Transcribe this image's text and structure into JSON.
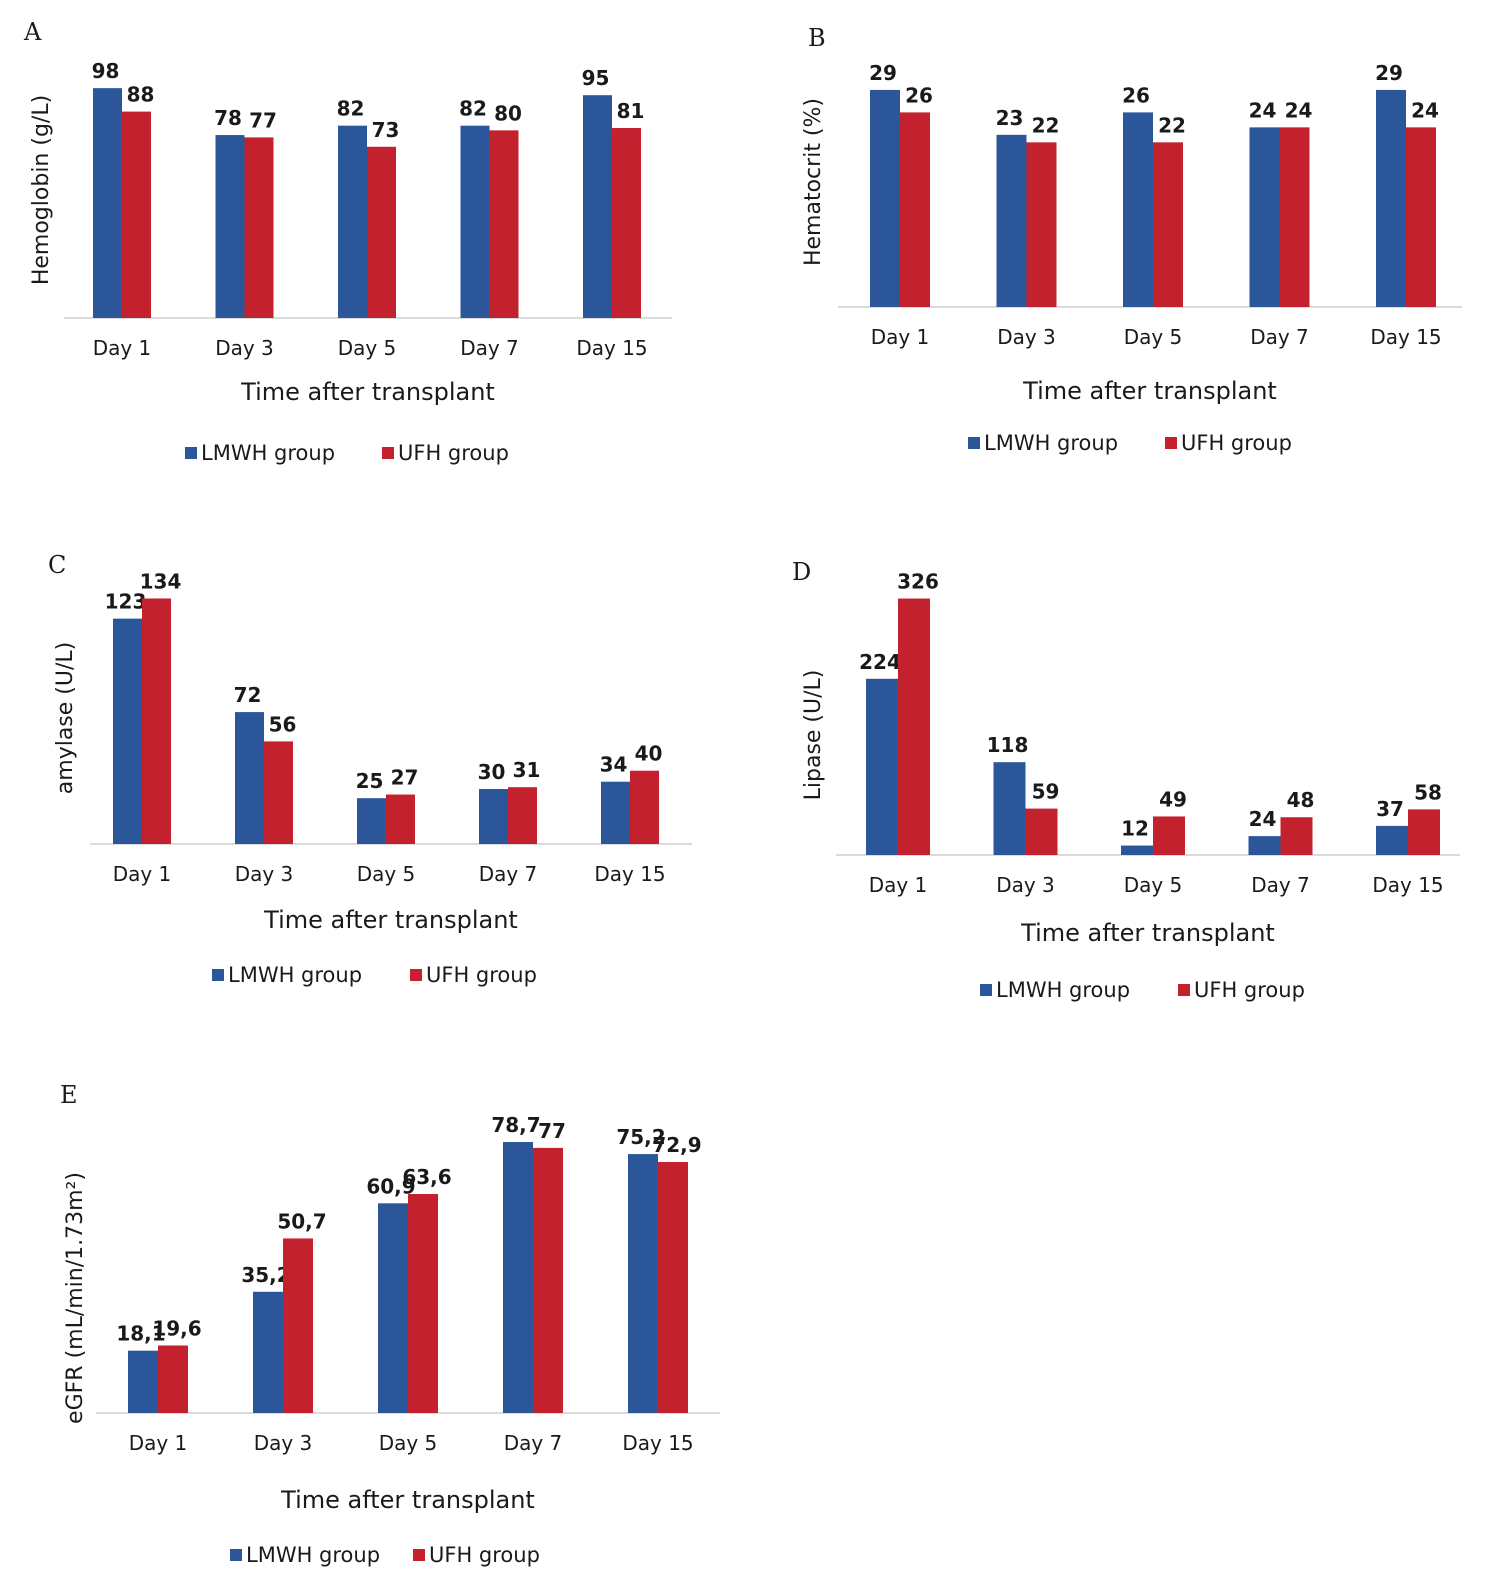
{
  "colors": {
    "lmwh": "#2b579a",
    "ufh": "#c4212e"
  },
  "chart_data": [
    {
      "type": "bar",
      "panel": "A",
      "categories": [
        "Day 1",
        "Day 3",
        "Day 5",
        "Day 7",
        "Day 15"
      ],
      "series": [
        {
          "name": "LMWH group",
          "values": [
            98,
            78,
            82,
            82,
            95
          ],
          "labels": [
            "98",
            "78",
            "82",
            "82",
            "95"
          ]
        },
        {
          "name": "UFH group",
          "values": [
            88,
            77,
            73,
            80,
            81
          ],
          "labels": [
            "88",
            "77",
            "73",
            "80",
            "81"
          ]
        }
      ],
      "xlabel": "Time after transplant",
      "ylabel": "Hemoglobin (g/L)",
      "ylim": [
        0,
        110
      ],
      "grid": false,
      "legend": "bottom"
    },
    {
      "type": "bar",
      "panel": "B",
      "categories": [
        "Day 1",
        "Day 3",
        "Day 5",
        "Day 7",
        "Day 15"
      ],
      "series": [
        {
          "name": "LMWH group",
          "values": [
            29,
            23,
            26,
            24,
            29
          ],
          "labels": [
            "29",
            "23",
            "26",
            "24",
            "29"
          ]
        },
        {
          "name": "UFH group",
          "values": [
            26,
            22,
            22,
            24,
            24
          ],
          "labels": [
            "26",
            "22",
            "22",
            "24",
            "24"
          ]
        }
      ],
      "xlabel": "Time after transplant",
      "ylabel": "Hematocrit (%)",
      "ylim": [
        0,
        33
      ],
      "grid": false,
      "legend": "bottom"
    },
    {
      "type": "bar",
      "panel": "C",
      "categories": [
        "Day 1",
        "Day 3",
        "Day 5",
        "Day 7",
        "Day 15"
      ],
      "series": [
        {
          "name": "LMWH group",
          "values": [
            123,
            72,
            25,
            30,
            34
          ],
          "labels": [
            "123",
            "72",
            "25",
            "30",
            "34"
          ]
        },
        {
          "name": "UFH group",
          "values": [
            134,
            56,
            27,
            31,
            40
          ],
          "labels": [
            "134",
            "56",
            "27",
            "31",
            "40"
          ]
        }
      ],
      "xlabel": "Time after transplant",
      "ylabel": "amylase (U/L)",
      "ylim": [
        0,
        155
      ],
      "grid": false,
      "legend": "bottom"
    },
    {
      "type": "bar",
      "panel": "D",
      "categories": [
        "Day 1",
        "Day 3",
        "Day 5",
        "Day 7",
        "Day 15"
      ],
      "series": [
        {
          "name": "LMWH group",
          "values": [
            224,
            118,
            12,
            24,
            37
          ],
          "labels": [
            "224",
            "118",
            "12",
            "24",
            "37"
          ]
        },
        {
          "name": "UFH group",
          "values": [
            326,
            59,
            49,
            48,
            58
          ],
          "labels": [
            "326",
            "59",
            "49",
            "48",
            "58"
          ]
        }
      ],
      "xlabel": "Time after transplant",
      "ylabel": "Lipase (U/L)",
      "ylim": [
        0,
        375
      ],
      "grid": false,
      "legend": "bottom"
    },
    {
      "type": "bar",
      "panel": "E",
      "categories": [
        "Day 1",
        "Day 3",
        "Day 5",
        "Day 7",
        "Day 15"
      ],
      "series": [
        {
          "name": "LMWH group",
          "values": [
            18.1,
            35.2,
            60.9,
            78.7,
            75.2
          ],
          "labels": [
            "18,1",
            "35,2",
            "60,9",
            "78,7",
            "75,2"
          ]
        },
        {
          "name": "UFH group",
          "values": [
            19.6,
            50.7,
            63.6,
            77,
            72.9
          ],
          "labels": [
            "19,6",
            "50,7",
            "63,6",
            "77",
            "72,9"
          ]
        }
      ],
      "xlabel": "Time after transplant",
      "ylabel": "eGFR (mL/min/1.73m²)",
      "ylim": [
        0,
        88
      ],
      "grid": false,
      "legend": "bottom"
    }
  ]
}
